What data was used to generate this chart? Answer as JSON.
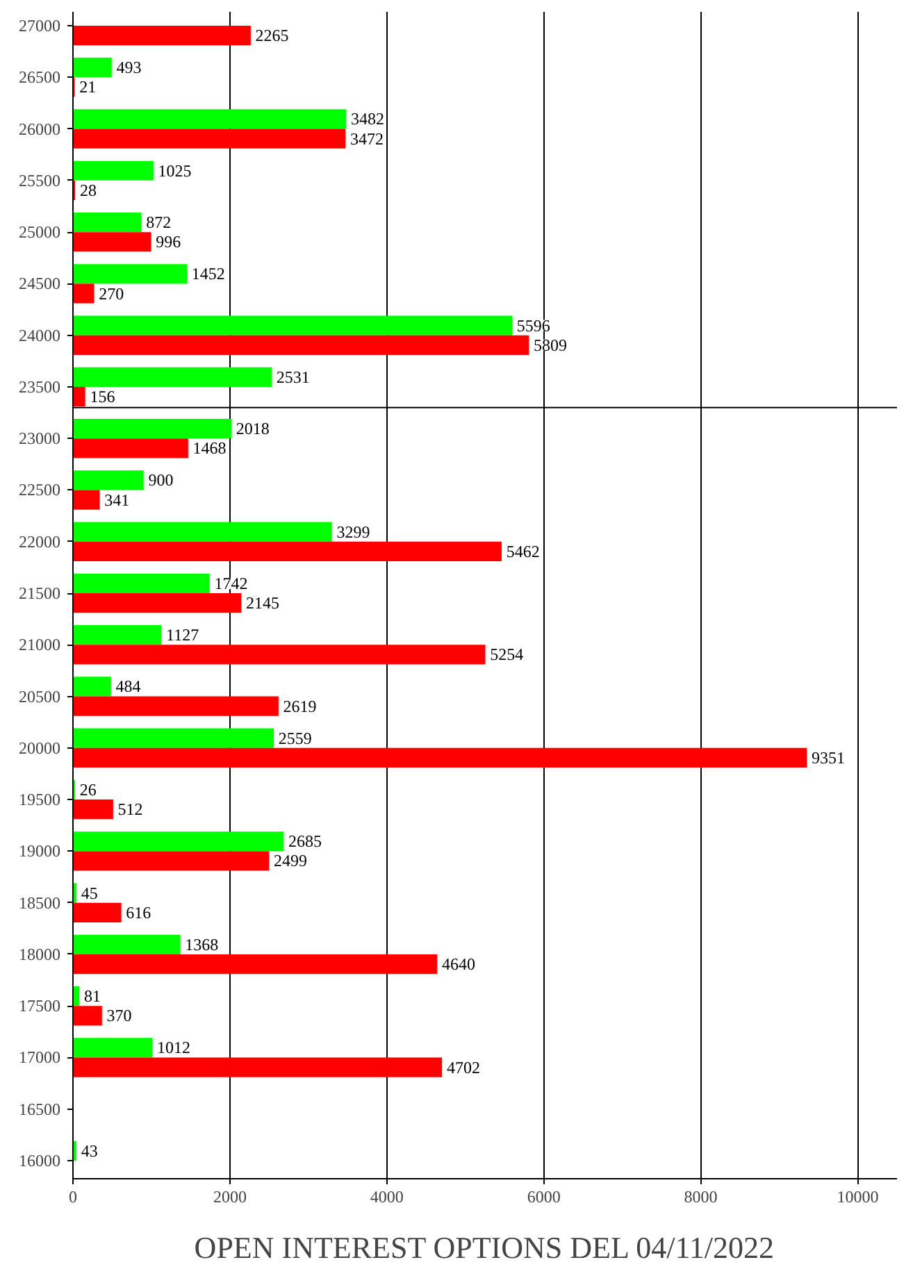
{
  "chart_data": {
    "type": "bar",
    "orientation": "horizontal",
    "title": "OPEN INTEREST OPTIONS DEL 04/11/2022",
    "x": [
      27000,
      26500,
      26000,
      25500,
      25000,
      24500,
      24000,
      23500,
      23000,
      22500,
      22000,
      21500,
      21000,
      20500,
      20000,
      19500,
      19000,
      18500,
      18000,
      17500,
      17000,
      16500,
      16000
    ],
    "series": [
      {
        "color": "#00ff00",
        "values": [
          null,
          493,
          3482,
          1025,
          872,
          1452,
          5596,
          2531,
          2018,
          900,
          3299,
          1742,
          1127,
          484,
          2559,
          26,
          2685,
          45,
          1368,
          81,
          1012,
          null,
          43
        ]
      },
      {
        "color": "#ff0000",
        "values": [
          2265,
          21,
          3472,
          28,
          996,
          270,
          5809,
          156,
          1468,
          341,
          5462,
          2145,
          5254,
          2619,
          9351,
          512,
          2499,
          616,
          4640,
          370,
          4702,
          null,
          null
        ]
      }
    ],
    "xlim": [
      0,
      10500
    ],
    "xticks": [
      0,
      2000,
      4000,
      6000,
      8000,
      10000
    ],
    "ylim": [
      15825,
      27135
    ],
    "yticks": [
      16000,
      16500,
      17000,
      17500,
      18000,
      18500,
      19000,
      19500,
      20000,
      20500,
      21000,
      21500,
      22000,
      22500,
      23000,
      23500,
      24000,
      24500,
      25000,
      25500,
      26000,
      26500,
      27000
    ],
    "ref_lines": [
      {
        "axis": "y",
        "value": 23300,
        "color": "#000000"
      }
    ],
    "grid": "x",
    "data_labels": true
  }
}
